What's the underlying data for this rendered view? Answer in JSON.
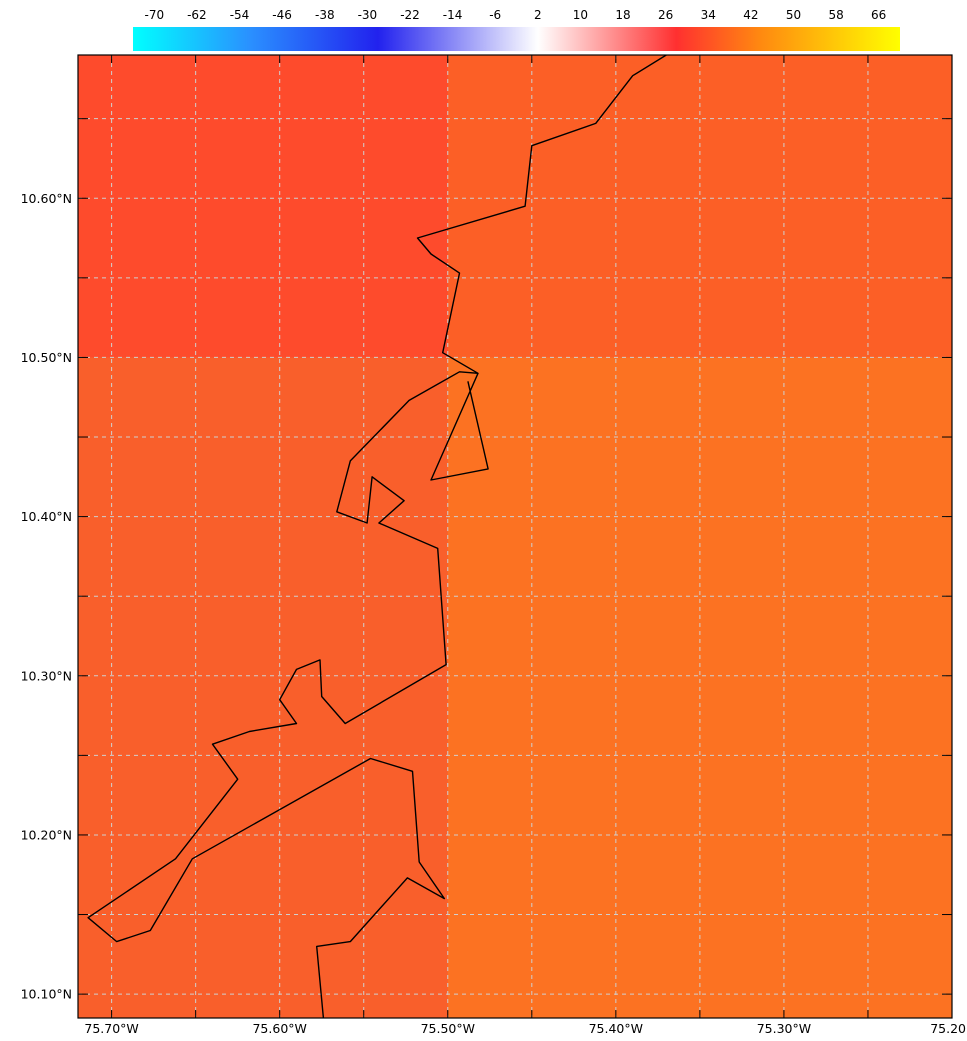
{
  "colorbar": {
    "labels": [
      "-70",
      "-62",
      "-54",
      "-46",
      "-38",
      "-30",
      "-22",
      "-14",
      "-6",
      "2",
      "10",
      "18",
      "26",
      "34",
      "42",
      "50",
      "58",
      "66"
    ],
    "range": [
      -74,
      70
    ],
    "stops": [
      {
        "value": -74,
        "color": "#00ffff"
      },
      {
        "value": -52,
        "color": "#2a90ff"
      },
      {
        "value": -28,
        "color": "#2222ee"
      },
      {
        "value": 2,
        "color": "#ffffff"
      },
      {
        "value": 28,
        "color": "#ff3030"
      },
      {
        "value": 44,
        "color": "#ff8a10"
      },
      {
        "value": 70,
        "color": "#ffff00"
      }
    ]
  },
  "map": {
    "x_range": [
      -75.72,
      -75.2
    ],
    "y_range": [
      10.085,
      10.69
    ],
    "grid": true,
    "grid_lon": [
      -75.7,
      -75.65,
      -75.6,
      -75.55,
      -75.5,
      -75.45,
      -75.4,
      -75.35,
      -75.3,
      -75.25
    ],
    "grid_lat": [
      10.1,
      10.15,
      10.2,
      10.25,
      10.3,
      10.35,
      10.4,
      10.45,
      10.5,
      10.55,
      10.6,
      10.65
    ],
    "x_tick_labels": [
      {
        "value": -75.7,
        "label": "75.70°W"
      },
      {
        "value": -75.6,
        "label": "75.60°W"
      },
      {
        "value": -75.5,
        "label": "75.50°W"
      },
      {
        "value": -75.4,
        "label": "75.40°W"
      },
      {
        "value": -75.3,
        "label": "75.30°W"
      },
      {
        "value": -75.2,
        "label": "75.20"
      }
    ],
    "y_tick_labels": [
      {
        "value": 10.6,
        "label": "10.60°N"
      },
      {
        "value": 10.5,
        "label": "10.50°N"
      },
      {
        "value": 10.4,
        "label": "10.40°N"
      },
      {
        "value": 10.3,
        "label": "10.30°N"
      },
      {
        "value": 10.2,
        "label": "10.20°N"
      },
      {
        "value": 10.1,
        "label": "10.10°N"
      }
    ],
    "cells": [
      {
        "lon": [
          -75.72,
          -75.5
        ],
        "lat": [
          10.5,
          10.69
        ],
        "color": "#fe4b2c"
      },
      {
        "lon": [
          -75.5,
          -75.2
        ],
        "lat": [
          10.5,
          10.69
        ],
        "color": "#fc5f26"
      },
      {
        "lon": [
          -75.72,
          -75.5
        ],
        "lat": [
          10.085,
          10.5
        ],
        "color": "#f95f2b"
      },
      {
        "lon": [
          -75.5,
          -75.2
        ],
        "lat": [
          10.085,
          10.5
        ],
        "color": "#fc7222"
      }
    ],
    "coastline": [
      [
        -75.37,
        10.69
      ],
      [
        -75.39,
        10.677
      ],
      [
        -75.412,
        10.647
      ],
      [
        -75.45,
        10.633
      ],
      [
        -75.454,
        10.595
      ],
      [
        -75.518,
        10.575
      ],
      [
        -75.51,
        10.565
      ],
      [
        -75.493,
        10.553
      ],
      [
        -75.503,
        10.503
      ],
      [
        -75.482,
        10.49
      ],
      [
        -75.493,
        10.491
      ],
      [
        -75.523,
        10.473
      ],
      [
        -75.558,
        10.435
      ],
      [
        -75.566,
        10.403
      ],
      [
        -75.548,
        10.396
      ],
      [
        -75.545,
        10.425
      ],
      [
        -75.526,
        10.41
      ],
      [
        -75.541,
        10.396
      ],
      [
        -75.506,
        10.38
      ],
      [
        -75.501,
        10.307
      ],
      [
        -75.561,
        10.27
      ],
      [
        -75.575,
        10.287
      ],
      [
        -75.576,
        10.31
      ],
      [
        -75.59,
        10.304
      ],
      [
        -75.6,
        10.285
      ],
      [
        -75.59,
        10.27
      ],
      [
        -75.618,
        10.265
      ],
      [
        -75.64,
        10.257
      ],
      [
        -75.625,
        10.235
      ],
      [
        -75.662,
        10.185
      ],
      [
        -75.714,
        10.148
      ],
      [
        -75.697,
        10.133
      ],
      [
        -75.677,
        10.14
      ],
      [
        -75.652,
        10.185
      ],
      [
        -75.546,
        10.248
      ],
      [
        -75.521,
        10.24
      ],
      [
        -75.517,
        10.183
      ],
      [
        -75.502,
        10.16
      ],
      [
        -75.524,
        10.173
      ],
      [
        -75.558,
        10.133
      ],
      [
        -75.578,
        10.13
      ],
      [
        -75.574,
        10.085
      ]
    ],
    "inlet": [
      [
        -75.482,
        10.49
      ],
      [
        -75.51,
        10.423
      ],
      [
        -75.476,
        10.43
      ],
      [
        -75.488,
        10.485
      ]
    ]
  }
}
